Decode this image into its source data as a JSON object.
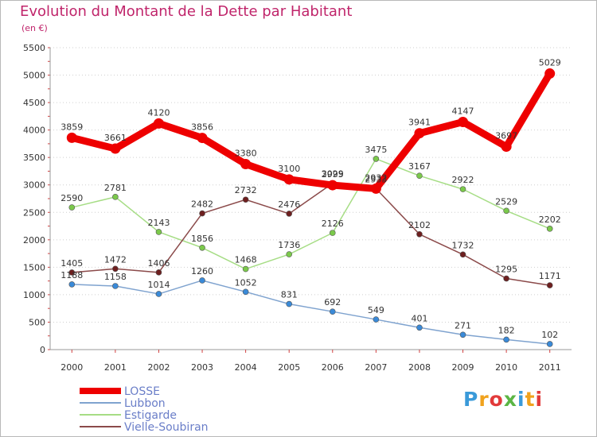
{
  "header": {
    "title": "Evolution du Montant de la Dette par Habitant",
    "unit": "(en €)"
  },
  "logo": {
    "text": "Proxiti",
    "letters": [
      {
        "ch": "P",
        "color": "#3a9ad9"
      },
      {
        "ch": "r",
        "color": "#f0a21d"
      },
      {
        "ch": "o",
        "color": "#e23a3a"
      },
      {
        "ch": "x",
        "color": "#5bb544"
      },
      {
        "ch": "i",
        "color": "#3a9ad9"
      },
      {
        "ch": "t",
        "color": "#f0a21d"
      },
      {
        "ch": "i",
        "color": "#e23a3a"
      }
    ]
  },
  "chart_data": {
    "type": "line",
    "title": "Evolution du Montant de la Dette par Habitant",
    "ylabel": "(en €)",
    "xlabel": "",
    "x": [
      "2000",
      "2001",
      "2002",
      "2003",
      "2004",
      "2005",
      "2006",
      "2007",
      "2008",
      "2009",
      "2010",
      "2011"
    ],
    "ylim": [
      0,
      5500
    ],
    "yticks": [
      0,
      500,
      1000,
      1500,
      2000,
      2500,
      3000,
      3500,
      4000,
      4500,
      5000,
      5500
    ],
    "grid": "horizontal",
    "legend_position": "bottom-left",
    "series": [
      {
        "name": "LOSSE",
        "color": "#ee0000",
        "marker": "#ee0000",
        "emphasis": true,
        "values": [
          3859,
          3661,
          4120,
          3856,
          3380,
          3100,
          2995,
          2932,
          3941,
          4147,
          3697,
          5029
        ],
        "labels": [
          "3859",
          "3661",
          "4120",
          "3856",
          "3380",
          "3100",
          "2995",
          "2932",
          "3941",
          "4147",
          "3697",
          "5029"
        ]
      },
      {
        "name": "Lubbon",
        "color": "#7fa3cf",
        "marker": "#3a8ad8",
        "emphasis": false,
        "values": [
          1188,
          1158,
          1014,
          1260,
          1052,
          831,
          692,
          549,
          401,
          271,
          182,
          102
        ],
        "labels": [
          "1188",
          "1158",
          "1014",
          "1260",
          "1052",
          "831",
          "692",
          "549",
          "401",
          "271",
          "182",
          "102"
        ]
      },
      {
        "name": "Estigarde",
        "color": "#a6dd85",
        "marker": "#7bc94b",
        "emphasis": false,
        "values": [
          2590,
          2781,
          2143,
          1856,
          1468,
          1736,
          2126,
          3475,
          3167,
          2922,
          2529,
          2202
        ],
        "labels": [
          "2590",
          "2781",
          "2143",
          "1856",
          "1468",
          "1736",
          "2126",
          "3475",
          "3167",
          "2922",
          "2529",
          "2202"
        ]
      },
      {
        "name": "Vielle-Soubiran",
        "color": "#8b4a4a",
        "marker": "#6e1f1f",
        "emphasis": false,
        "values": [
          1405,
          1472,
          1406,
          2482,
          2732,
          2476,
          3029,
          2933,
          2102,
          1732,
          1295,
          1171
        ],
        "labels": [
          "1405",
          "1472",
          "1406",
          "2482",
          "2732",
          "2476",
          "3029",
          "2933",
          "2102",
          "1732",
          "1295",
          "1171"
        ]
      }
    ]
  }
}
